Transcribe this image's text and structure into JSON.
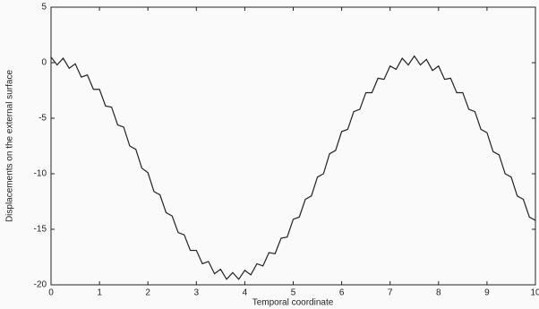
{
  "chart_data": {
    "type": "line",
    "xlabel": "Temporal coordinate",
    "ylabel": "Displacements on the external surface",
    "x": [
      0,
      0.125,
      0.25,
      0.375,
      0.5,
      0.625,
      0.75,
      0.875,
      1,
      1.125,
      1.25,
      1.375,
      1.5,
      1.625,
      1.75,
      1.875,
      2,
      2.125,
      2.25,
      2.375,
      2.5,
      2.625,
      2.75,
      2.875,
      3,
      3.125,
      3.25,
      3.375,
      3.5,
      3.625,
      3.75,
      3.875,
      4,
      4.125,
      4.25,
      4.375,
      4.5,
      4.625,
      4.75,
      4.875,
      5,
      5.125,
      5.25,
      5.375,
      5.5,
      5.625,
      5.75,
      5.875,
      6,
      6.125,
      6.25,
      6.375,
      6.5,
      6.625,
      6.75,
      6.875,
      7,
      7.125,
      7.25,
      7.375,
      7.5,
      7.625,
      7.75,
      7.875,
      8,
      8.125,
      8.25,
      8.375,
      8.5,
      8.625,
      8.75,
      8.875,
      9,
      9.125,
      9.25,
      9.375,
      9.5,
      9.625,
      9.75,
      9.875,
      10
    ],
    "series": [
      {
        "color": "#222222",
        "values": [
          0.5,
          -0.2,
          0.4,
          -0.5,
          -0.1,
          -1.3,
          -1.1,
          -2.4,
          -2.4,
          -3.9,
          -4.0,
          -5.6,
          -5.8,
          -7.5,
          -7.8,
          -9.5,
          -9.9,
          -11.6,
          -11.9,
          -13.5,
          -13.8,
          -15.3,
          -15.5,
          -16.9,
          -16.9,
          -18.1,
          -17.9,
          -19.0,
          -18.6,
          -19.5,
          -18.9,
          -19.5,
          -18.7,
          -19.1,
          -18.1,
          -18.3,
          -17.1,
          -17.2,
          -15.8,
          -15.7,
          -14.1,
          -13.9,
          -12.3,
          -12.0,
          -10.3,
          -10.0,
          -8.2,
          -7.9,
          -6.2,
          -6.0,
          -4.4,
          -4.2,
          -2.7,
          -2.7,
          -1.4,
          -1.5,
          -0.3,
          -0.6,
          0.4,
          -0.2,
          0.6,
          -0.2,
          0.3,
          -0.7,
          -0.3,
          -1.5,
          -1.4,
          -2.7,
          -2.7,
          -4.2,
          -4.4,
          -6.0,
          -6.3,
          -8.0,
          -8.3,
          -10.0,
          -10.3,
          -12.0,
          -12.3,
          -13.9,
          -14.2
        ]
      }
    ],
    "xlim": [
      0,
      10
    ],
    "xticks": [
      0,
      1,
      2,
      3,
      4,
      5,
      6,
      7,
      8,
      9,
      10
    ],
    "ylim": [
      -20,
      5
    ],
    "yticks": [
      -20,
      -15,
      -10,
      -5,
      0,
      5
    ],
    "grid": false
  }
}
